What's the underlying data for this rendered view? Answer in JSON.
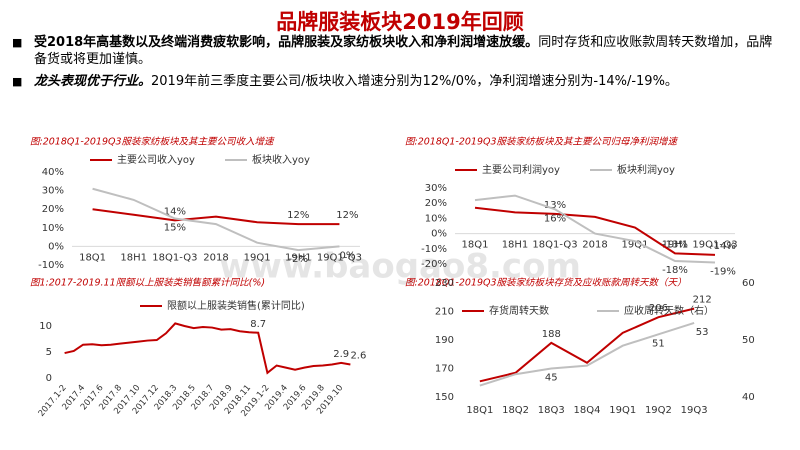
{
  "header": {
    "title": "品牌服装板块2019年回顾"
  },
  "bullets": [
    {
      "bold": "受2018年高基数以及终端消费疲软影响，品牌服装及家纺板块收入和净利润增速放缓。",
      "text": "同时存货和应收账款周转天数增加，品牌备货或将更加谨慎。"
    },
    {
      "bold": "龙头表现优于行业。",
      "text": "2019年前三季度主要公司/板块收入增速分别为12%/0%，净利润增速分别为-14%/-19%。"
    }
  ],
  "watermark": "www.baogao8.com",
  "chart_data": [
    {
      "type": "line",
      "title": "图:2018Q1-2019Q3服装家纺板块及其主要公司收入增速",
      "categories": [
        "18Q1",
        "18H1",
        "18Q1-Q3",
        "2018",
        "19Q1",
        "19H1",
        "19Q1-Q3"
      ],
      "series": [
        {
          "name": "主要公司收入yoy",
          "color": "#c00000",
          "values": [
            20,
            17,
            14,
            16,
            13,
            12,
            12
          ],
          "value_labels": [
            null,
            null,
            "14%",
            null,
            null,
            "12%",
            "12%"
          ]
        },
        {
          "name": "板块收入yoy",
          "color": "#bfbfbf",
          "values": [
            31,
            25,
            15,
            12,
            2,
            -2,
            0
          ],
          "value_labels": [
            null,
            null,
            "15%",
            null,
            null,
            "-2%",
            "0%"
          ]
        }
      ],
      "ylim": [
        -10,
        40
      ],
      "yticks": [
        {
          "value": -10,
          "label": "-10%"
        },
        {
          "value": 0,
          "label": "0%"
        },
        {
          "value": 10,
          "label": "10%"
        },
        {
          "value": 20,
          "label": "20%"
        },
        {
          "value": 30,
          "label": "30%"
        },
        {
          "value": 40,
          "label": "40%"
        }
      ],
      "grid": false
    },
    {
      "type": "line",
      "title": "图:2018Q1-2019Q3服装家纺板块及其主要公司归母净利润增速",
      "categories": [
        "18Q1",
        "18H1",
        "18Q1-Q3",
        "2018",
        "19Q1",
        "19H1",
        "19Q1-Q3"
      ],
      "series": [
        {
          "name": "主要公司利润yoy",
          "color": "#c00000",
          "values": [
            17,
            14,
            13,
            11,
            4,
            -13,
            -14
          ],
          "value_labels": [
            null,
            null,
            "13%",
            null,
            null,
            "-13%",
            "-14%"
          ]
        },
        {
          "name": "板块利润yoy",
          "color": "#bfbfbf",
          "values": [
            22,
            25,
            16,
            0,
            -5,
            -18,
            -19
          ],
          "value_labels": [
            null,
            null,
            "16%",
            null,
            null,
            "-18%",
            "-19%"
          ]
        }
      ],
      "ylim": [
        -20,
        30
      ],
      "yticks": [
        {
          "value": -20,
          "label": "-20%"
        },
        {
          "value": -10,
          "label": "-10%"
        },
        {
          "value": 0,
          "label": "0%"
        },
        {
          "value": 10,
          "label": "10%"
        },
        {
          "value": 20,
          "label": "20%"
        },
        {
          "value": 30,
          "label": "30%"
        }
      ],
      "grid": false
    },
    {
      "type": "line",
      "title": "图1:2017-2019.11限额以上服装类销售额累计同比(%)",
      "categories": [
        "2017.1-2",
        null,
        "2017.4",
        null,
        "2017.6",
        null,
        "2017.8",
        null,
        "2017.10",
        null,
        "2017.12",
        null,
        "2018.3",
        null,
        "2018.5",
        null,
        "2018.7",
        null,
        "2018.9",
        null,
        "2018.11",
        null,
        "2019.1-2",
        null,
        "2019.4",
        null,
        "2019.6",
        null,
        "2019.8",
        null,
        "2019.10",
        null
      ],
      "series": [
        {
          "name": "限额以上服装类销售(累计同比)",
          "color": "#c00000",
          "values": [
            4.8,
            5.2,
            6.4,
            6.5,
            6.3,
            6.4,
            6.6,
            6.8,
            7.0,
            7.2,
            7.3,
            8.6,
            10.5,
            10.0,
            9.6,
            9.8,
            9.7,
            9.3,
            9.4,
            9.0,
            8.8,
            8.7,
            1.0,
            2.4,
            2.0,
            1.6,
            2.0,
            2.3,
            2.4,
            2.6,
            2.9,
            2.6
          ],
          "value_labels": [
            null,
            null,
            null,
            null,
            null,
            null,
            null,
            null,
            null,
            null,
            null,
            null,
            null,
            null,
            null,
            null,
            null,
            null,
            null,
            null,
            null,
            "8.7",
            null,
            null,
            null,
            null,
            null,
            null,
            null,
            null,
            "2.9",
            "2.6"
          ]
        }
      ],
      "ylim": [
        0,
        12
      ],
      "yticks": [
        0,
        5,
        10
      ],
      "grid": false
    },
    {
      "type": "line",
      "title": "图:2018Q1-2019Q3服装家纺板块存货及应收账款周转天数（天）",
      "categories": [
        "18Q1",
        "18Q2",
        "18Q3",
        "18Q4",
        "19Q1",
        "19Q2",
        "19Q3"
      ],
      "series": [
        {
          "name": "存货周转天数",
          "color": "#c00000",
          "values": [
            161,
            167,
            188,
            174,
            195,
            206,
            212
          ],
          "value_labels": [
            null,
            null,
            "188",
            null,
            null,
            "206",
            "212"
          ]
        },
        {
          "name": "应收周转天数（右）",
          "color": "#bfbfbf",
          "axis": "y2",
          "values": [
            42,
            44,
            45,
            45.5,
            49,
            51,
            53
          ],
          "value_labels": [
            null,
            null,
            "45",
            null,
            null,
            "51",
            "53"
          ]
        }
      ],
      "ylim": [
        150,
        230
      ],
      "yticks": [
        150,
        170,
        190,
        210,
        230
      ],
      "y2lim": [
        40,
        60
      ],
      "y2ticks": [
        40,
        50,
        60
      ],
      "grid": false
    }
  ]
}
